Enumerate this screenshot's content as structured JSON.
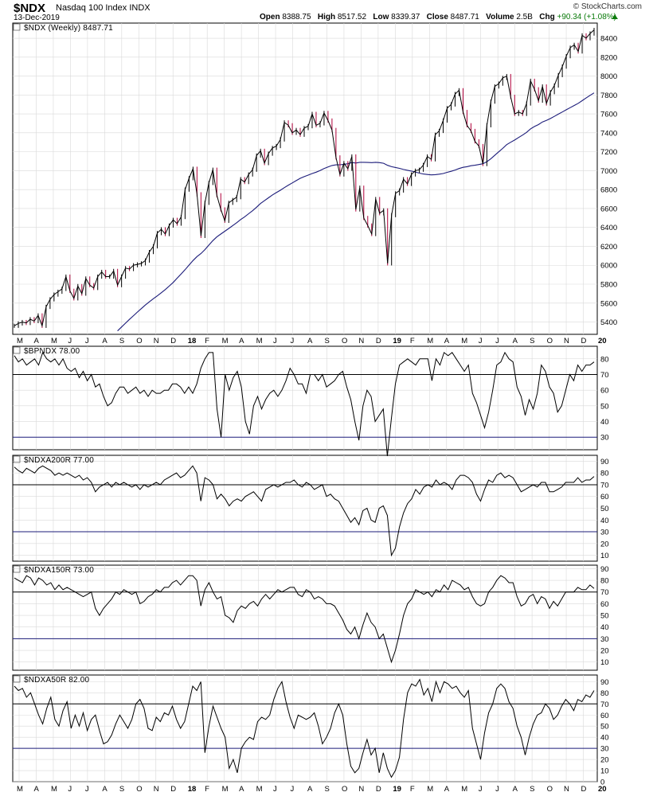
{
  "header": {
    "symbol": "$NDX",
    "name": "Nasdaq 100 Index INDX",
    "date": "13-Dec-2019",
    "brand": "© StockCharts.com",
    "open_label": "Open",
    "open": "8388.75",
    "high_label": "High",
    "high": "8517.52",
    "low_label": "Low",
    "low": "8339.37",
    "close_label": "Close",
    "close": "8487.71",
    "volume_label": "Volume",
    "volume": "2.5B",
    "chg_label": "Chg",
    "chg": "+90.34 (+1.08%)"
  },
  "colors": {
    "price": "#000000",
    "down_bar": "#b0003a",
    "ma": "#1c1c7a",
    "ref_line": "#000000",
    "grid": "#d9d9d9",
    "ref_line_low": "#1c1c7a"
  },
  "chart_data": [
    {
      "type": "line",
      "label": "$NDX (Weekly) 8487.71",
      "ylim": [
        5270,
        8560
      ],
      "yticks": [
        5400,
        5600,
        5800,
        6000,
        6200,
        6400,
        6600,
        6800,
        7000,
        7200,
        7400,
        7600,
        7800,
        8000,
        8200,
        8400
      ],
      "x_labels": [
        "M",
        "A",
        "M",
        "J",
        "J",
        "A",
        "S",
        "O",
        "N",
        "D",
        "18",
        "F",
        "M",
        "A",
        "M",
        "J",
        "J",
        "A",
        "S",
        "O",
        "N",
        "D",
        "19",
        "F",
        "M",
        "A",
        "M",
        "J",
        "J",
        "A",
        "S",
        "O",
        "N",
        "D",
        "20"
      ],
      "series": [
        {
          "name": "$NDX",
          "values": [
            5360,
            5385,
            5400,
            5390,
            5430,
            5410,
            5470,
            5360,
            5560,
            5640,
            5690,
            5720,
            5750,
            5880,
            5730,
            5650,
            5780,
            5700,
            5860,
            5790,
            5760,
            5880,
            5930,
            5880,
            5880,
            5940,
            5790,
            5880,
            5970,
            5960,
            6000,
            6010,
            6020,
            6050,
            6140,
            6200,
            6340,
            6380,
            6330,
            6420,
            6480,
            6440,
            6510,
            6800,
            6920,
            7020,
            6750,
            6310,
            6660,
            6870,
            7010,
            6740,
            6590,
            6470,
            6660,
            6690,
            6720,
            6910,
            6880,
            6960,
            7010,
            7160,
            7210,
            7080,
            7180,
            7240,
            7260,
            7330,
            7510,
            7480,
            7400,
            7430,
            7380,
            7450,
            7470,
            7600,
            7480,
            7500,
            7610,
            7530,
            7430,
            7140,
            6960,
            7080,
            7020,
            7150,
            6590,
            6820,
            6500,
            6420,
            6330,
            6700,
            6550,
            6580,
            6020,
            6530,
            6760,
            6790,
            6910,
            6860,
            6960,
            7000,
            7010,
            7060,
            7150,
            7120,
            7380,
            7420,
            7530,
            7660,
            7700,
            7810,
            7850,
            7620,
            7480,
            7420,
            7310,
            7260,
            7070,
            7480,
            7730,
            7890,
            7920,
            7980,
            8000,
            7780,
            7600,
            7620,
            7600,
            7710,
            7950,
            7860,
            7740,
            7890,
            7710,
            7830,
            7900,
            8010,
            8100,
            8210,
            8300,
            8330,
            8260,
            8430,
            8400,
            8450,
            8487.71
          ]
        },
        {
          "name": "MA",
          "values": [
            null,
            null,
            null,
            null,
            null,
            null,
            null,
            null,
            null,
            null,
            null,
            null,
            null,
            null,
            null,
            null,
            null,
            null,
            null,
            null,
            null,
            null,
            null,
            null,
            null,
            null,
            5306,
            5347,
            5388,
            5428,
            5467,
            5506,
            5543,
            5580,
            5613,
            5646,
            5676,
            5709,
            5743,
            5780,
            5819,
            5863,
            5907,
            5953,
            6002,
            6050,
            6092,
            6124,
            6165,
            6213,
            6260,
            6300,
            6330,
            6360,
            6389,
            6419,
            6450,
            6483,
            6512,
            6545,
            6577,
            6614,
            6653,
            6683,
            6713,
            6743,
            6769,
            6793,
            6821,
            6847,
            6870,
            6895,
            6919,
            6937,
            6953,
            6970,
            6984,
            7002,
            7022,
            7039,
            7055,
            7061,
            7062,
            7067,
            7073,
            7086,
            7081,
            7088,
            7088,
            7087,
            7085,
            7088,
            7085,
            7078,
            7056,
            7042,
            7034,
            7024,
            7013,
            7004,
            6996,
            6986,
            6974,
            6965,
            6960,
            6955,
            6958,
            6963,
            6970,
            6982,
            6993,
            7007,
            7023,
            7035,
            7042,
            7052,
            7057,
            7065,
            7073,
            7095,
            7126,
            7162,
            7199,
            7236,
            7275,
            7300,
            7324,
            7351,
            7376,
            7405,
            7442,
            7467,
            7487,
            7515,
            7531,
            7551,
            7574,
            7597,
            7620,
            7644,
            7666,
            7689,
            7712,
            7740,
            7768,
            7796,
            7822
          ]
        }
      ]
    },
    {
      "type": "line",
      "label": "$BPNDX 78.00",
      "ylim": [
        22,
        88
      ],
      "yticks": [
        30,
        40,
        50,
        60,
        70,
        80
      ],
      "ref_lines": [
        70,
        30
      ],
      "values": [
        82,
        78,
        80,
        76,
        78,
        80,
        76,
        84,
        80,
        78,
        80,
        76,
        80,
        74,
        72,
        74,
        68,
        72,
        66,
        70,
        62,
        64,
        56,
        50,
        52,
        58,
        62,
        62,
        58,
        60,
        62,
        58,
        60,
        56,
        60,
        58,
        58,
        60,
        60,
        64,
        64,
        62,
        58,
        62,
        58,
        64,
        74,
        80,
        84,
        84,
        48,
        30,
        70,
        60,
        68,
        72,
        62,
        40,
        32,
        50,
        56,
        48,
        54,
        58,
        60,
        56,
        60,
        66,
        74,
        70,
        64,
        64,
        58,
        70,
        70,
        66,
        70,
        62,
        64,
        66,
        70,
        72,
        62,
        54,
        40,
        28,
        50,
        60,
        56,
        40,
        44,
        48,
        18,
        42,
        64,
        76,
        78,
        80,
        78,
        76,
        80,
        80,
        80,
        66,
        80,
        76,
        84,
        82,
        84,
        80,
        76,
        72,
        76,
        58,
        52,
        44,
        36,
        46,
        60,
        76,
        78,
        84,
        80,
        78,
        62,
        56,
        44,
        54,
        48,
        58,
        76,
        72,
        62,
        58,
        46,
        50,
        60,
        70,
        66,
        76,
        72,
        76,
        76,
        78
      ]
    },
    {
      "type": "line",
      "label": "$NDXA200R 77.00",
      "ylim": [
        5,
        95
      ],
      "yticks": [
        10,
        20,
        30,
        40,
        50,
        60,
        70,
        80,
        90
      ],
      "ref_lines": [
        70,
        30
      ],
      "values": [
        85,
        82,
        80,
        84,
        82,
        80,
        84,
        86,
        84,
        82,
        78,
        80,
        78,
        80,
        78,
        76,
        78,
        74,
        76,
        72,
        64,
        68,
        70,
        72,
        68,
        72,
        70,
        72,
        70,
        68,
        70,
        66,
        70,
        68,
        70,
        72,
        70,
        74,
        76,
        78,
        80,
        76,
        78,
        82,
        86,
        80,
        56,
        76,
        74,
        70,
        58,
        62,
        58,
        52,
        56,
        58,
        56,
        60,
        62,
        64,
        60,
        56,
        66,
        68,
        70,
        68,
        70,
        72,
        72,
        74,
        70,
        68,
        72,
        70,
        66,
        68,
        70,
        60,
        62,
        58,
        56,
        50,
        44,
        38,
        42,
        36,
        48,
        50,
        40,
        38,
        50,
        52,
        44,
        10,
        16,
        34,
        46,
        54,
        58,
        66,
        62,
        68,
        70,
        68,
        74,
        70,
        72,
        70,
        66,
        74,
        78,
        78,
        76,
        72,
        62,
        56,
        66,
        74,
        72,
        78,
        80,
        76,
        78,
        76,
        70,
        64,
        66,
        68,
        70,
        68,
        72,
        72,
        64,
        64,
        66,
        68,
        72,
        72,
        72,
        76,
        72,
        74,
        74,
        77
      ]
    },
    {
      "type": "line",
      "label": "$NDXA150R 73.00",
      "ylim": [
        3,
        93
      ],
      "yticks": [
        10,
        20,
        30,
        40,
        50,
        60,
        70,
        80,
        90
      ],
      "ref_lines": [
        70,
        30
      ],
      "values": [
        82,
        80,
        78,
        84,
        82,
        76,
        82,
        80,
        76,
        78,
        72,
        76,
        72,
        74,
        72,
        70,
        68,
        66,
        68,
        70,
        56,
        50,
        56,
        60,
        64,
        70,
        68,
        72,
        70,
        68,
        70,
        60,
        62,
        66,
        68,
        72,
        70,
        74,
        74,
        78,
        80,
        76,
        80,
        84,
        84,
        80,
        58,
        72,
        78,
        70,
        64,
        66,
        50,
        48,
        44,
        54,
        58,
        56,
        60,
        62,
        58,
        64,
        68,
        64,
        68,
        72,
        70,
        72,
        74,
        74,
        68,
        66,
        72,
        70,
        64,
        66,
        64,
        60,
        60,
        58,
        52,
        46,
        38,
        34,
        40,
        30,
        42,
        52,
        44,
        40,
        30,
        34,
        22,
        10,
        20,
        34,
        50,
        60,
        64,
        72,
        70,
        68,
        70,
        66,
        72,
        70,
        76,
        72,
        80,
        78,
        76,
        72,
        74,
        66,
        60,
        58,
        60,
        70,
        74,
        80,
        84,
        82,
        78,
        78,
        66,
        58,
        60,
        66,
        68,
        60,
        66,
        64,
        56,
        62,
        58,
        64,
        70,
        70,
        70,
        74,
        72,
        72,
        76,
        73
      ]
    },
    {
      "type": "line",
      "label": "$NDXA50R 82.00",
      "ylim": [
        0,
        96
      ],
      "yticks": [
        0,
        10,
        20,
        30,
        40,
        50,
        60,
        70,
        80,
        90
      ],
      "ref_lines": [
        70,
        30
      ],
      "values": [
        86,
        82,
        84,
        76,
        80,
        70,
        60,
        52,
        66,
        76,
        56,
        50,
        64,
        72,
        48,
        60,
        50,
        62,
        46,
        56,
        60,
        46,
        34,
        36,
        42,
        52,
        60,
        54,
        48,
        56,
        70,
        74,
        66,
        48,
        46,
        58,
        54,
        62,
        60,
        68,
        56,
        48,
        54,
        70,
        86,
        82,
        90,
        26,
        50,
        68,
        58,
        48,
        40,
        12,
        20,
        8,
        30,
        36,
        40,
        38,
        54,
        58,
        56,
        60,
        74,
        84,
        90,
        72,
        58,
        48,
        60,
        58,
        56,
        58,
        62,
        50,
        34,
        40,
        48,
        62,
        70,
        60,
        34,
        14,
        8,
        12,
        26,
        38,
        24,
        30,
        8,
        26,
        12,
        4,
        10,
        22,
        56,
        80,
        88,
        86,
        92,
        78,
        84,
        72,
        90,
        80,
        90,
        88,
        84,
        86,
        80,
        76,
        82,
        48,
        34,
        20,
        44,
        62,
        70,
        84,
        88,
        84,
        72,
        66,
        50,
        40,
        24,
        40,
        52,
        60,
        62,
        70,
        66,
        56,
        60,
        68,
        74,
        70,
        64,
        74,
        72,
        78,
        76,
        82
      ]
    }
  ]
}
